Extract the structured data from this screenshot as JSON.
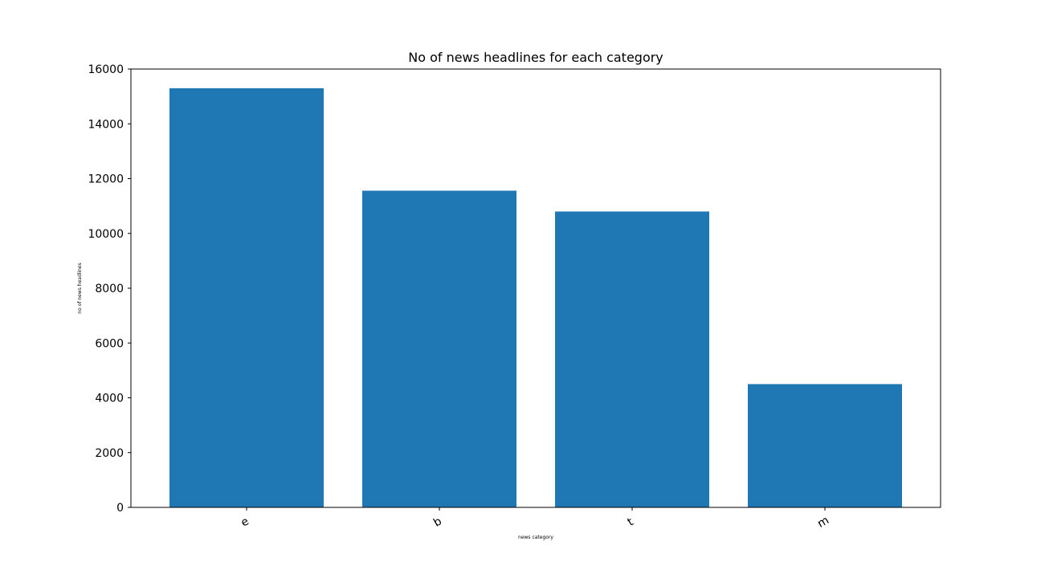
{
  "chart_data": {
    "type": "bar",
    "title": "No of news headlines for each category",
    "xlabel": "news category",
    "ylabel": "no of news headlines",
    "categories": [
      "e",
      "b",
      "t",
      "m"
    ],
    "values": [
      15300,
      11560,
      10800,
      4500
    ],
    "ylim": [
      0,
      16000
    ],
    "yticks": [
      0,
      2000,
      4000,
      6000,
      8000,
      10000,
      12000,
      14000,
      16000
    ],
    "xtick_rotation_deg": -30,
    "bar_color": "#1f77b4",
    "grid": false,
    "legend": null
  }
}
